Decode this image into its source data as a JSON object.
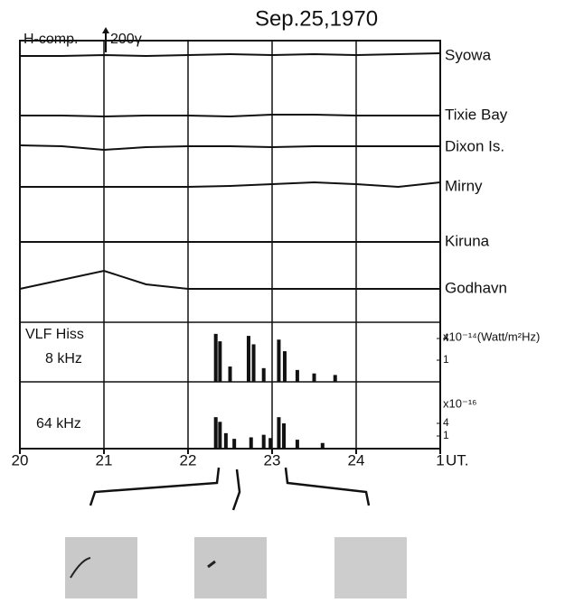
{
  "chart_data": [
    {
      "type": "line",
      "title": "Sep.25,1970",
      "scale_name": "H-comp.",
      "scale_bar": {
        "value": 200,
        "label": "200γ"
      },
      "x": [
        20,
        20.5,
        21,
        21.5,
        22,
        22.5,
        23,
        23.5,
        24,
        24.5,
        25
      ],
      "xlim": [
        20,
        25
      ],
      "xticks": [
        20,
        21,
        22,
        23,
        24,
        {
          "value": 25,
          "label": "1"
        }
      ],
      "xlabel": "UT.",
      "series": [
        {
          "name": "Syowa",
          "color": "#111111",
          "values": [
            0,
            0,
            8,
            0,
            8,
            16,
            8,
            16,
            8,
            16,
            24
          ]
        },
        {
          "name": "Tixie Bay",
          "color": "#111111",
          "values": [
            0,
            0,
            -8,
            0,
            0,
            -8,
            8,
            8,
            0,
            0,
            0
          ]
        },
        {
          "name": "Dixon Is.",
          "color": "#111111",
          "values": [
            16,
            8,
            -24,
            0,
            8,
            8,
            0,
            8,
            8,
            8,
            8
          ]
        },
        {
          "name": "Mirny",
          "color": "#111111",
          "values": [
            0,
            0,
            0,
            0,
            0,
            8,
            24,
            40,
            24,
            0,
            40
          ]
        },
        {
          "name": "Kiruna",
          "color": "#111111",
          "values": [
            0,
            0,
            0,
            0,
            0,
            0,
            0,
            0,
            0,
            0,
            0
          ]
        },
        {
          "name": "Godhavn",
          "color": "#111111",
          "values": [
            0,
            80,
            160,
            40,
            0,
            0,
            0,
            0,
            0,
            0,
            0
          ]
        }
      ]
    },
    {
      "type": "bar",
      "title": "VLF Hiss",
      "scale": "sqrt",
      "panels": [
        {
          "name": "8 kHz",
          "unit": "x10⁻¹⁴(Watt/m²Hz)",
          "yticks": [
            4,
            1
          ],
          "x": [
            22.33,
            22.38,
            22.5,
            22.72,
            22.78,
            22.9,
            23.08,
            23.15,
            23.3,
            23.5,
            23.75
          ],
          "values": [
            4.9,
            3.5,
            0.5,
            4.5,
            3,
            0.4,
            3.8,
            2,
            0.3,
            0.15,
            0.1
          ]
        },
        {
          "name": "64 kHz",
          "unit": "x10⁻¹⁶",
          "yticks": [
            4,
            1
          ],
          "x": [
            22.33,
            22.38,
            22.45,
            22.55,
            22.75,
            22.9,
            22.98,
            23.08,
            23.14,
            23.3,
            23.6
          ],
          "values": [
            6.2,
            4.5,
            1.5,
            0.6,
            0.8,
            1.2,
            0.7,
            6.2,
            4,
            0.5,
            0.2
          ]
        }
      ]
    }
  ]
}
